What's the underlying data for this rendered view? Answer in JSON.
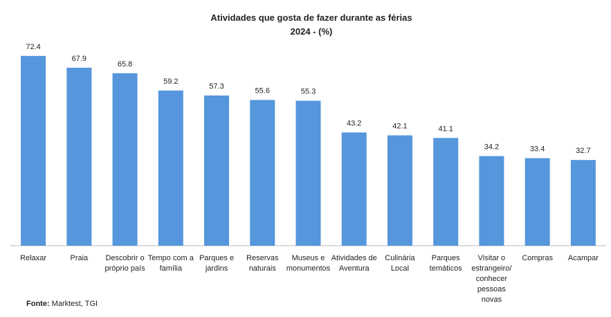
{
  "chart_data": {
    "type": "bar",
    "title": "Atividades que gosta de fazer durante as férias",
    "subtitle": "2024 - (%)",
    "categories": [
      "Relaxar",
      "Praia",
      "Descobrir o\npróprio país",
      "Tempo com a\nfamília",
      "Parques e\njardins",
      "Reservas\nnaturais",
      "Museus e\nmonumentos",
      "Atividades de\nAventura",
      "Culinária\nLocal",
      "Parques\ntemáticos",
      "Visitar o\nestrangeiro/\nconhecer\npessoas\nnovas",
      "Compras",
      "Acampar"
    ],
    "values": [
      72.4,
      67.9,
      65.8,
      59.2,
      57.3,
      55.6,
      55.3,
      43.2,
      42.1,
      41.1,
      34.2,
      33.4,
      32.7
    ],
    "color": "#5596dc",
    "ylim": [
      0,
      80
    ]
  },
  "source_label": "Fonte:",
  "source": "Marktest, TGI"
}
